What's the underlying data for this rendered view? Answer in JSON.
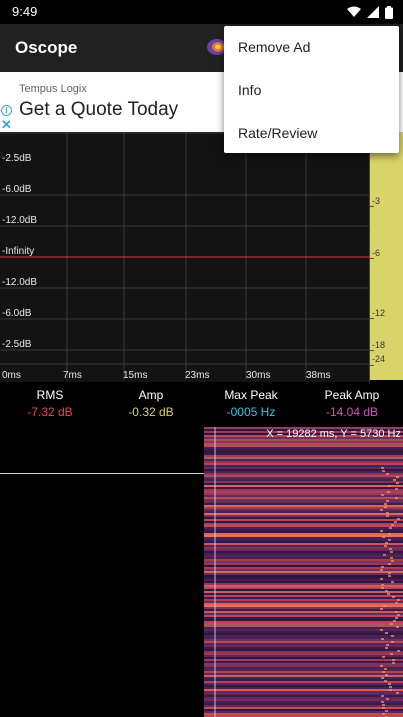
{
  "status_bar": {
    "time": "9:49",
    "icons": [
      "wifi-icon",
      "signal-icon",
      "battery-icon"
    ]
  },
  "app_bar": {
    "title": "Oscope"
  },
  "ad": {
    "sponsor": "Tempus Logix",
    "headline": "Get a Quote Today"
  },
  "scope": {
    "y_labels": [
      "-2.5dB",
      "-6.0dB",
      "-12.0dB",
      "-Infinity",
      "-12.0dB",
      "-6.0dB",
      "-2.5dB"
    ],
    "x_labels": [
      "0ms",
      "7ms",
      "15ms",
      "23ms",
      "30ms",
      "38ms"
    ],
    "signal_color": "#e0393e"
  },
  "level_meter": {
    "ticks": [
      "-3",
      "-6",
      "-12",
      "-18",
      "-24"
    ],
    "color": "#d9d46a"
  },
  "stats": [
    {
      "label": "RMS",
      "value": "-7.32 dB",
      "color": "#e84d4d"
    },
    {
      "label": "Amp",
      "value": "-0.32 dB",
      "color": "#dcd36b"
    },
    {
      "label": "Max Peak",
      "value": "-0005 Hz",
      "color": "#39c5e0"
    },
    {
      "label": "Peak Amp",
      "value": "-14.04 dB",
      "color": "#d350c8"
    }
  ],
  "spectrogram": {
    "coords": "X = 19282 ms, Y = 5730 Hz"
  },
  "menu": {
    "items": [
      "Remove Ad",
      "Info",
      "Rate/Review"
    ]
  }
}
